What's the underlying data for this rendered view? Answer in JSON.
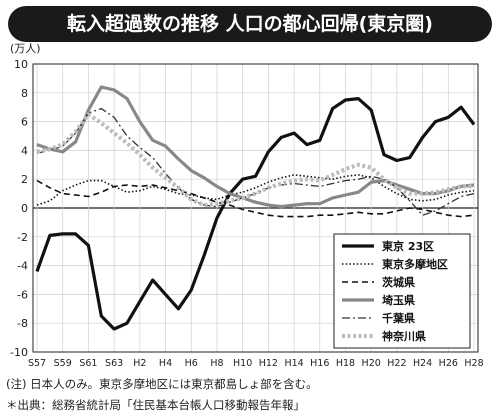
{
  "title": "転入超過数の推移 人口の都心回帰(東京圏)",
  "notes": {
    "note1": "(注) 日本人のみ。東京多摩地区には東京都島しょ部を含む。",
    "note2": "＊出典：総務省統計局「住民基本台帳人口移動報告年報」"
  },
  "chart_data": {
    "type": "line",
    "unit_label": "(万人)",
    "ylim": [
      -10,
      10
    ],
    "y_ticks": [
      10,
      8,
      6,
      4,
      2,
      0,
      -2,
      -4,
      -6,
      -8,
      -10
    ],
    "x_tick_labels": [
      "S57",
      "S59",
      "S61",
      "S63",
      "H2",
      "H4",
      "H6",
      "H8",
      "H10",
      "H12",
      "H14",
      "H16",
      "H18",
      "H20",
      "H22",
      "H24",
      "H26",
      "H28"
    ],
    "x": [
      1982,
      1983,
      1984,
      1985,
      1986,
      1987,
      1988,
      1989,
      1990,
      1991,
      1992,
      1993,
      1994,
      1995,
      1996,
      1997,
      1998,
      1999,
      2000,
      2001,
      2002,
      2003,
      2004,
      2005,
      2006,
      2007,
      2008,
      2009,
      2010,
      2011,
      2012,
      2013,
      2014,
      2015,
      2016
    ],
    "grid": true,
    "legend_position": "bottom-right",
    "series": [
      {
        "name": "東京 23区",
        "color": "#111111",
        "style": "solid-thick",
        "values": [
          -4.4,
          -1.9,
          -1.8,
          -1.8,
          -2.6,
          -7.5,
          -8.4,
          -8.0,
          -6.5,
          -5.0,
          -6.0,
          -7.0,
          -5.7,
          -3.3,
          -0.7,
          1.0,
          2.0,
          2.2,
          3.9,
          4.9,
          5.2,
          4.4,
          4.7,
          6.9,
          7.5,
          7.6,
          6.8,
          3.7,
          3.3,
          3.5,
          4.9,
          6.0,
          6.3,
          7.0,
          5.8
        ]
      },
      {
        "name": "東京多摩地区",
        "color": "#111111",
        "style": "dotted",
        "values": [
          0.2,
          0.5,
          1.2,
          1.6,
          1.9,
          1.9,
          1.5,
          1.1,
          1.2,
          1.5,
          1.3,
          1.0,
          0.9,
          0.7,
          0.6,
          0.9,
          1.1,
          1.4,
          1.8,
          2.1,
          2.3,
          2.2,
          2.1,
          2.0,
          2.2,
          2.3,
          2.1,
          1.5,
          1.0,
          0.6,
          0.5,
          0.6,
          0.9,
          1.1,
          1.2
        ]
      },
      {
        "name": "茨城県",
        "color": "#111111",
        "style": "dashed",
        "values": [
          1.9,
          1.4,
          1.0,
          0.9,
          0.8,
          1.1,
          1.5,
          1.6,
          1.5,
          1.6,
          1.4,
          1.2,
          1.0,
          0.7,
          0.4,
          0.2,
          -0.1,
          -0.3,
          -0.5,
          -0.6,
          -0.6,
          -0.6,
          -0.5,
          -0.5,
          -0.4,
          -0.3,
          -0.4,
          -0.4,
          -0.2,
          0.0,
          -0.1,
          -0.3,
          -0.5,
          -0.6,
          -0.5
        ]
      },
      {
        "name": "埼玉県",
        "color": "#888888",
        "style": "solid-thick-gray",
        "values": [
          4.4,
          4.1,
          3.9,
          4.6,
          6.8,
          8.4,
          8.2,
          7.6,
          6.0,
          4.7,
          4.3,
          3.4,
          2.6,
          2.1,
          1.5,
          1.0,
          0.7,
          0.4,
          0.2,
          0.1,
          0.2,
          0.3,
          0.3,
          0.7,
          0.9,
          1.1,
          1.8,
          1.9,
          1.6,
          1.3,
          1.0,
          1.0,
          1.2,
          1.5,
          1.6
        ]
      },
      {
        "name": "千葉県",
        "color": "#333333",
        "style": "dashdot",
        "values": [
          3.8,
          4.0,
          4.3,
          5.2,
          6.6,
          6.9,
          6.3,
          5.0,
          4.2,
          3.5,
          2.4,
          1.4,
          0.6,
          0.2,
          0.1,
          0.4,
          0.7,
          1.0,
          1.4,
          1.6,
          1.7,
          1.6,
          1.5,
          1.7,
          1.9,
          2.0,
          2.2,
          2.0,
          1.4,
          0.5,
          -0.5,
          -0.2,
          0.3,
          0.8,
          1.0
        ]
      },
      {
        "name": "神奈川県",
        "color": "#bdbdbd",
        "style": "dotted-thick",
        "values": [
          3.9,
          4.1,
          4.4,
          5.3,
          6.5,
          5.9,
          5.2,
          4.5,
          3.7,
          2.8,
          2.1,
          1.4,
          0.6,
          0.2,
          0.3,
          0.5,
          0.7,
          1.0,
          1.4,
          1.7,
          1.9,
          2.0,
          1.9,
          2.3,
          2.7,
          3.0,
          2.8,
          2.0,
          1.4,
          1.0,
          1.0,
          1.1,
          1.3,
          1.5,
          1.5
        ]
      }
    ]
  }
}
